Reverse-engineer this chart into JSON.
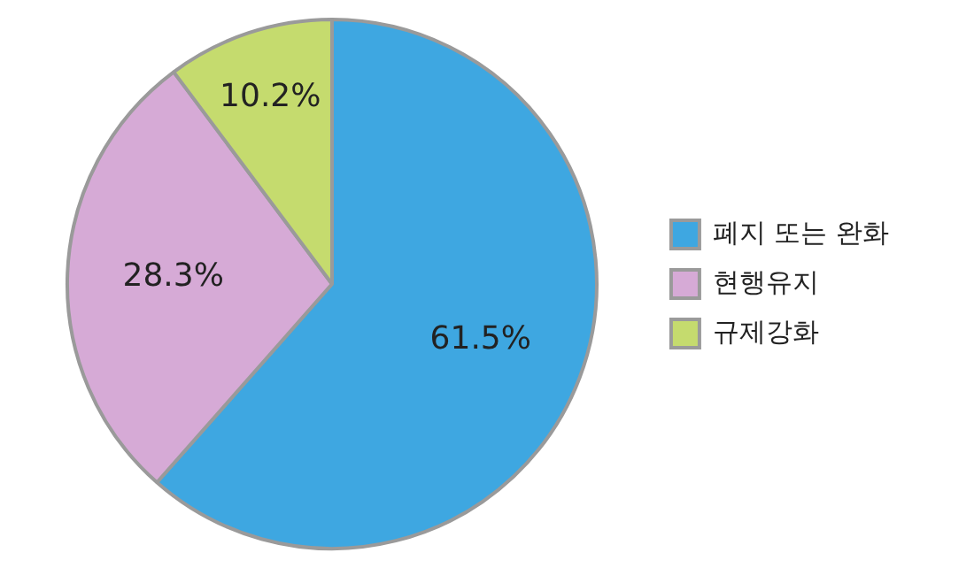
{
  "chart_data": {
    "type": "pie",
    "categories": [
      "폐지 또는 완화",
      "현행유지",
      "규제강화"
    ],
    "values": [
      61.5,
      28.3,
      10.2
    ],
    "value_labels": [
      "61.5%",
      "28.3%",
      "10.2%"
    ],
    "colors": [
      "#3ea7e1",
      "#d6aad6",
      "#c5db6e"
    ],
    "legend": "right"
  }
}
